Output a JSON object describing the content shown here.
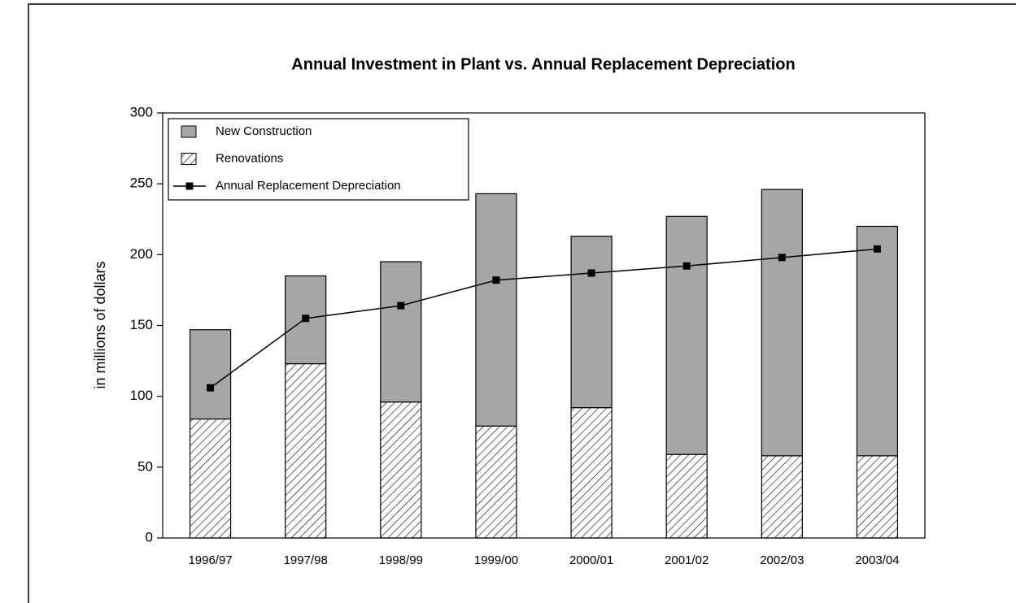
{
  "chart_data": {
    "type": "bar",
    "stacked": true,
    "title": "Annual Investment in Plant vs. Annual Replacement Depreciation",
    "ylabel": "in millions of dollars",
    "categories": [
      "1996/97",
      "1997/98",
      "1998/99",
      "1999/00",
      "2000/01",
      "2001/02",
      "2002/03",
      "2003/04"
    ],
    "series": [
      {
        "name": "New Construction",
        "type": "bar",
        "color": "#a6a6a6",
        "values": [
          63,
          62,
          99,
          164,
          121,
          168,
          188,
          162
        ]
      },
      {
        "name": "Renovations",
        "type": "bar",
        "color": "#ffffff",
        "hatch": true,
        "values": [
          84,
          123,
          96,
          79,
          92,
          59,
          58,
          58
        ]
      },
      {
        "name": "Annual Replacement Depreciation",
        "type": "line",
        "color": "#000000",
        "marker": "square",
        "values": [
          106,
          155,
          164,
          182,
          187,
          192,
          198,
          204
        ]
      }
    ],
    "ylim": [
      0,
      300
    ],
    "yticks": [
      0,
      50,
      100,
      150,
      200,
      250,
      300
    ],
    "grid": false,
    "legend": "upper left"
  }
}
